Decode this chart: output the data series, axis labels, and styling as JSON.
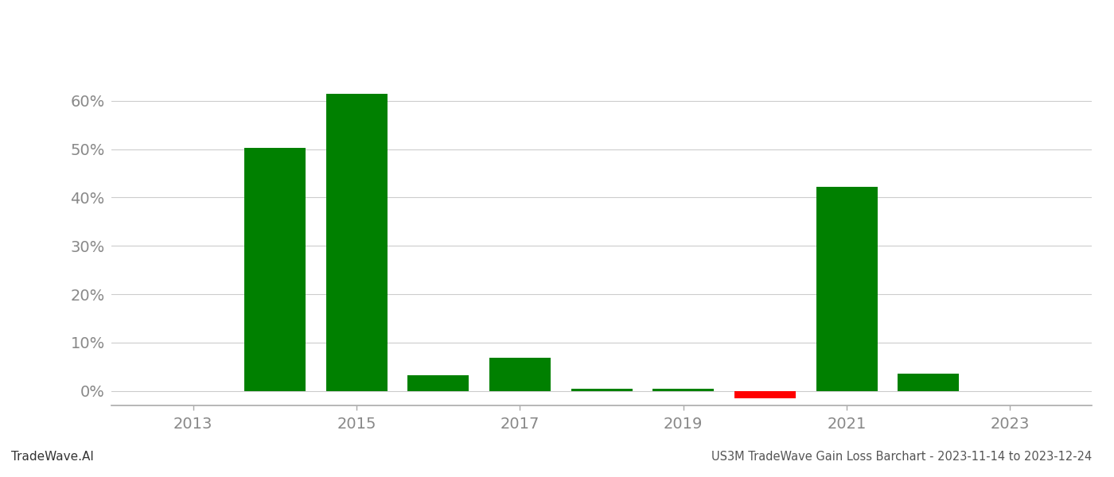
{
  "years": [
    2013,
    2014,
    2015,
    2016,
    2017,
    2018,
    2019,
    2020,
    2021,
    2022,
    2023
  ],
  "values": [
    0.0,
    50.3,
    61.5,
    3.2,
    6.8,
    0.5,
    0.4,
    -1.5,
    42.2,
    3.5,
    0.0
  ],
  "colors": [
    "#008000",
    "#008000",
    "#008000",
    "#008000",
    "#008000",
    "#008000",
    "#008000",
    "#ff0000",
    "#008000",
    "#008000",
    "#008000"
  ],
  "title": "US3M TradeWave Gain Loss Barchart - 2023-11-14 to 2023-12-24",
  "watermark": "TradeWave.AI",
  "xlim": [
    2012.0,
    2024.0
  ],
  "ylim": [
    -3,
    68
  ],
  "xticks": [
    2013,
    2015,
    2017,
    2019,
    2021,
    2023
  ],
  "yticks": [
    0,
    10,
    20,
    30,
    40,
    50,
    60
  ],
  "bar_width": 0.75,
  "background_color": "#ffffff",
  "grid_color": "#cccccc",
  "spine_color": "#aaaaaa",
  "tick_color": "#888888",
  "title_fontsize": 10.5,
  "tick_fontsize": 14,
  "watermark_fontsize": 11
}
